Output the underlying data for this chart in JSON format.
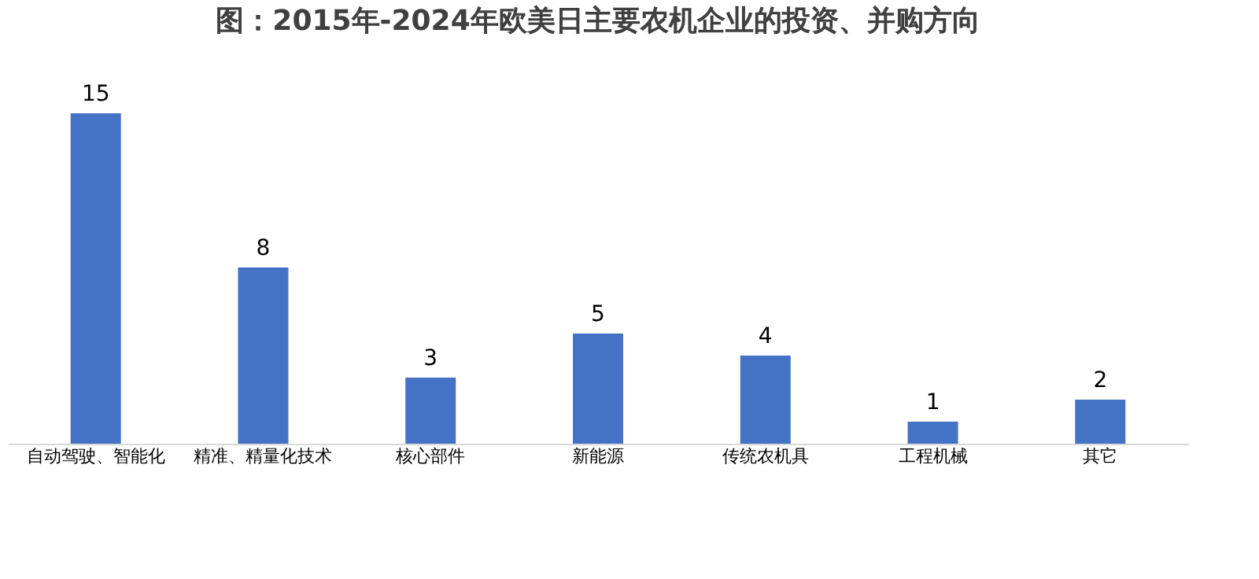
{
  "chart_data": {
    "type": "bar",
    "title": "图：2015年-2024年欧美日主要农机企业的投资、并购方向",
    "categories": [
      "自动驾驶、智能化",
      "精准、精量化技术",
      "核心部件",
      "新能源",
      "传统农机具",
      "工程机械",
      "其它"
    ],
    "values": [
      15,
      8,
      3,
      5,
      4,
      1,
      2
    ],
    "color": "#4472c4",
    "data_labels": true,
    "grid": false
  }
}
